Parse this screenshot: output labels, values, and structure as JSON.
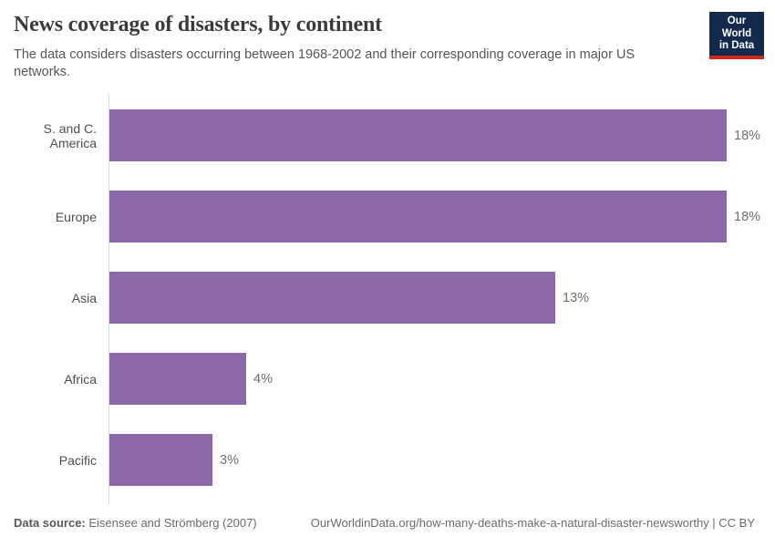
{
  "header": {
    "title": "News coverage of disasters, by continent",
    "subtitle": "The data considers disasters occurring between 1968-2002 and their corresponding coverage in major US networks.",
    "logo": {
      "line1": "Our World",
      "line2": "in Data"
    }
  },
  "chart_data": {
    "type": "bar",
    "orientation": "horizontal",
    "title": "News coverage of disasters, by continent",
    "categories": [
      "S. and C. America",
      "Europe",
      "Asia",
      "Africa",
      "Pacific"
    ],
    "values": [
      18,
      18,
      13,
      4,
      3
    ],
    "value_labels": [
      "18%",
      "18%",
      "13%",
      "4%",
      "3%"
    ],
    "xlabel": "",
    "ylabel": "",
    "xlim": [
      0,
      18
    ],
    "grid": false,
    "legend": "none",
    "bar_color": "#8b68a8"
  },
  "footer": {
    "datasource_label": "Data source:",
    "datasource_value": " Eisensee and Strömberg (2007)",
    "attribution": "OurWorldinData.org/how-many-deaths-make-a-natural-disaster-newsworthy | CC BY"
  },
  "colors": {
    "bar": "#8b68a8",
    "axis_line": "#dcdcdc",
    "title_text": "#3b3b3b",
    "subtitle_text": "#565656",
    "logo_background": "#13294e",
    "logo_accent": "#d1261a"
  }
}
